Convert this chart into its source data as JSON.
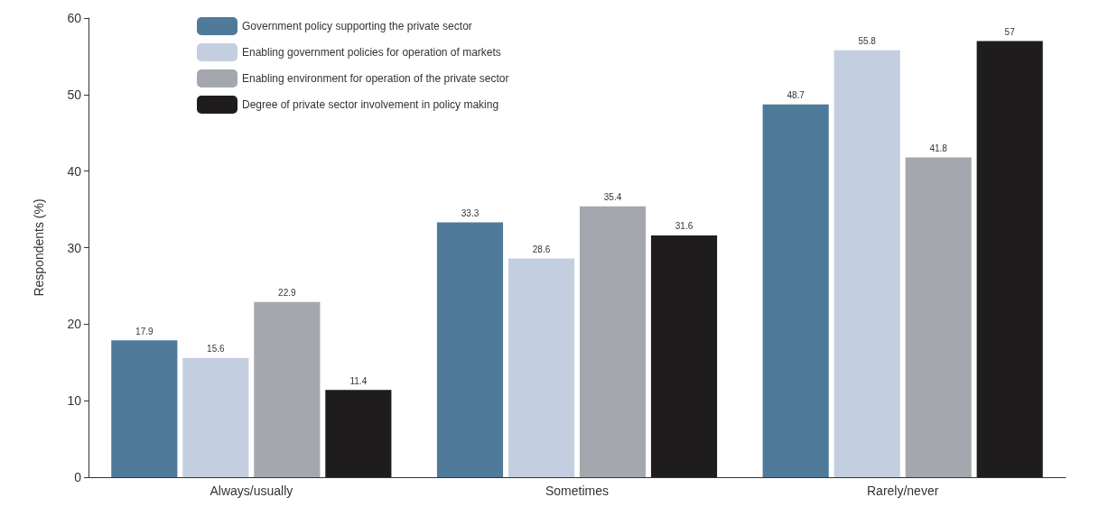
{
  "chart_data": {
    "type": "bar",
    "ylabel": "Respondents (%)",
    "categories": [
      "Always/usually",
      "Sometimes",
      "Rarely/never"
    ],
    "series": [
      {
        "name": "Government policy supporting the private sector",
        "color": "#4f7a9a",
        "values": [
          17.9,
          33.3,
          48.7
        ]
      },
      {
        "name": "Enabling government policies for operation of markets",
        "color": "#c3cfe0",
        "values": [
          15.6,
          28.6,
          55.8
        ]
      },
      {
        "name": "Enabling environment for operation of the private sector",
        "color": "#a4a8ae",
        "values": [
          22.9,
          35.4,
          41.8
        ]
      },
      {
        "name": "Degree of private sector involvement in policy making",
        "color": "#1e1c1d",
        "values": [
          11.4,
          31.6,
          57
        ]
      }
    ],
    "ylim": [
      0,
      60
    ],
    "yticks": [
      0,
      10,
      20,
      30,
      40,
      50,
      60
    ],
    "grid": false,
    "legend": "top left",
    "data_labels": true
  }
}
